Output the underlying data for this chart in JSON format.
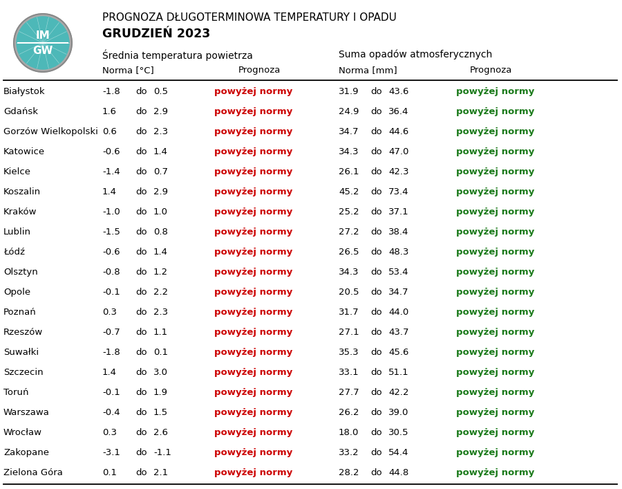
{
  "title1": "PROGNOZA DŁUGOTERMINOWA TEMPERATURY I OPADU",
  "title2": "GRUDZIEŃ 2023",
  "header1": "Średnia temperatura powietrza",
  "header2": "Suma opadów atmosferycznych",
  "cities": [
    "Białystok",
    "Gdańsk",
    "Gorzów Wielkopolski",
    "Katowice",
    "Kielce",
    "Koszalin",
    "Kraków",
    "Lublin",
    "Łódź",
    "Olsztyn",
    "Opole",
    "Poznań",
    "Rzeszów",
    "Suwałki",
    "Szczecin",
    "Toruń",
    "Warszawa",
    "Wrocław",
    "Zakopane",
    "Zielona Góra"
  ],
  "temp_norm_low": [
    -1.8,
    1.6,
    0.6,
    -0.6,
    -1.4,
    1.4,
    -1.0,
    -1.5,
    -0.6,
    -0.8,
    -0.1,
    0.3,
    -0.7,
    -1.8,
    1.4,
    -0.1,
    -0.4,
    0.3,
    -3.1,
    0.1
  ],
  "temp_norm_high": [
    0.5,
    2.9,
    2.3,
    1.4,
    0.7,
    2.9,
    1.0,
    0.8,
    1.4,
    1.2,
    2.2,
    2.3,
    1.1,
    0.1,
    3.0,
    1.9,
    1.5,
    2.6,
    -1.1,
    2.1
  ],
  "temp_forecast": [
    "powyżej normy",
    "powyżej normy",
    "powyżej normy",
    "powyżej normy",
    "powyżej normy",
    "powyżej normy",
    "powyżej normy",
    "powyżej normy",
    "powyżej normy",
    "powyżej normy",
    "powyżej normy",
    "powyżej normy",
    "powyżej normy",
    "powyżej normy",
    "powyżej normy",
    "powyżej normy",
    "powyżej normy",
    "powyżej normy",
    "powyżej normy",
    "powyżej normy"
  ],
  "precip_norm_low": [
    31.9,
    24.9,
    34.7,
    34.3,
    26.1,
    45.2,
    25.2,
    27.2,
    26.5,
    34.3,
    20.5,
    31.7,
    27.1,
    35.3,
    33.1,
    27.7,
    26.2,
    18.0,
    33.2,
    28.2
  ],
  "precip_norm_high": [
    43.6,
    36.4,
    44.6,
    47.0,
    42.3,
    73.4,
    37.1,
    38.4,
    48.3,
    53.4,
    34.7,
    44.0,
    43.7,
    45.6,
    51.1,
    42.2,
    39.0,
    30.5,
    54.4,
    44.8
  ],
  "precip_forecast": [
    "powyżej normy",
    "powyżej normy",
    "powyżej normy",
    "powyżej normy",
    "powyżej normy",
    "powyżej normy",
    "powyżej normy",
    "powyżej normy",
    "powyżej normy",
    "powyżej normy",
    "powyżej normy",
    "powyżej normy",
    "powyżej normy",
    "powyżej normy",
    "powyżej normy",
    "powyżej normy",
    "powyżej normy",
    "powyżej normy",
    "powyżej normy",
    "powyżej normy"
  ],
  "temp_forecast_color": "#cc0000",
  "precip_forecast_color": "#1a7a1a",
  "bg_color": "#ffffff",
  "text_color": "#000000",
  "logo_teal": "#4db8b8",
  "logo_gray": "#aaaaaa",
  "font_size": 9.5,
  "title1_fontsize": 11.0,
  "title2_fontsize": 12.5,
  "header_fontsize": 10.0,
  "subheader_fontsize": 9.5
}
